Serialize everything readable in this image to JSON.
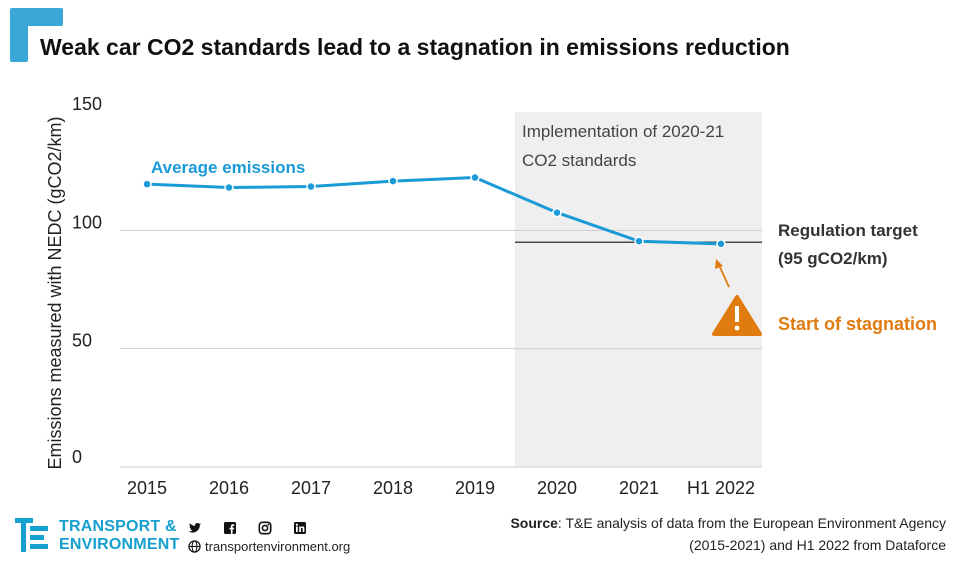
{
  "title": "Weak car CO2 standards lead to a stagnation in emissions reduction",
  "chart_data": {
    "type": "line",
    "categories": [
      "2015",
      "2016",
      "2017",
      "2018",
      "2019",
      "2020",
      "2021",
      "H1 2022"
    ],
    "series": [
      {
        "name": "Average emissions",
        "values": [
          119.5,
          118.1,
          118.5,
          120.8,
          122.3,
          107.5,
          95.4,
          94.3
        ],
        "color": "#1a9ad6"
      }
    ],
    "ylabel": "Emissions measured with NEDC (gCO2/km)",
    "ylim": [
      0,
      150
    ],
    "yticks": [
      "150",
      "100",
      "50",
      "0"
    ],
    "ytick_values": [
      150,
      100,
      50,
      0
    ],
    "grid": true,
    "shaded_region": {
      "from": "2020",
      "to": "H1 2022",
      "label_line1": "Implementation of 2020-21",
      "label_line2": "CO2 standards",
      "color": "#efefef"
    },
    "reference_line": {
      "value": 95,
      "label_line1": "Regulation target",
      "label_line2": "(95 gCO2/km)"
    },
    "annotation": {
      "label": "Start of stagnation",
      "color": "#e07b10",
      "icon": "warning-icon"
    }
  },
  "footer": {
    "brand_line1": "TRANSPORT &",
    "brand_line2": "ENVIRONMENT",
    "website": "transportenvironment.org",
    "social_icons": [
      "twitter-icon",
      "facebook-icon",
      "instagram-icon",
      "linkedin-icon"
    ],
    "source_label": "Source",
    "source_text": ": T&E analysis of data from the European Environment Agency (2015-2021) and H1 2022 from Dataforce"
  },
  "colors": {
    "accent": "#1a9ad6",
    "warning": "#e07b10",
    "brand": "#15a0cf"
  }
}
